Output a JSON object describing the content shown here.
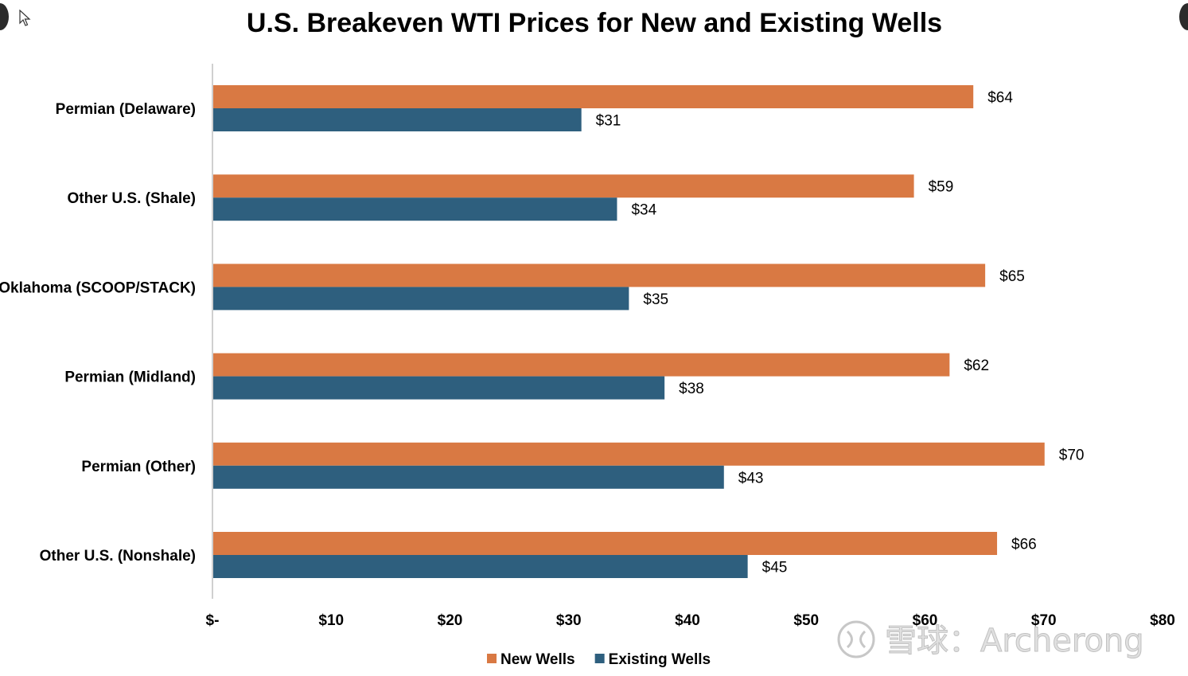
{
  "chart_data": {
    "type": "bar",
    "orientation": "horizontal",
    "title": "U.S. Breakeven WTI Prices for New and Existing Wells",
    "categories": [
      "Permian (Delaware)",
      "Other U.S. (Shale)",
      "Oklahoma (SCOOP/STACK)",
      "Permian (Midland)",
      "Permian (Other)",
      "Other U.S. (Nonshale)"
    ],
    "series": [
      {
        "name": "New Wells",
        "color": "#D97943",
        "values": [
          64,
          59,
          65,
          62,
          70,
          66
        ],
        "labels": [
          "$64",
          "$59",
          "$65",
          "$62",
          "$70",
          "$66"
        ]
      },
      {
        "name": "Existing Wells",
        "color": "#2E5F7E",
        "values": [
          31,
          34,
          35,
          38,
          43,
          45
        ],
        "labels": [
          "$31",
          "$34",
          "$35",
          "$38",
          "$43",
          "$45"
        ]
      }
    ],
    "xlim": [
      0,
      80
    ],
    "x_ticks": [
      0,
      10,
      20,
      30,
      40,
      50,
      60,
      70,
      80
    ],
    "x_tick_labels": [
      "$-",
      "$10",
      "$20",
      "$30",
      "$40",
      "$50",
      "$60",
      "$70",
      "$80"
    ],
    "xlabel": "",
    "ylabel": "",
    "grid": false,
    "legend": "bottom-center"
  },
  "watermark": {
    "text": "雪球：Archerong",
    "icon": "snowball-logo-icon"
  },
  "overlay": {
    "cursor_icon": "mouse-pointer-icon",
    "edge_controls": "dark-circle-icon"
  }
}
